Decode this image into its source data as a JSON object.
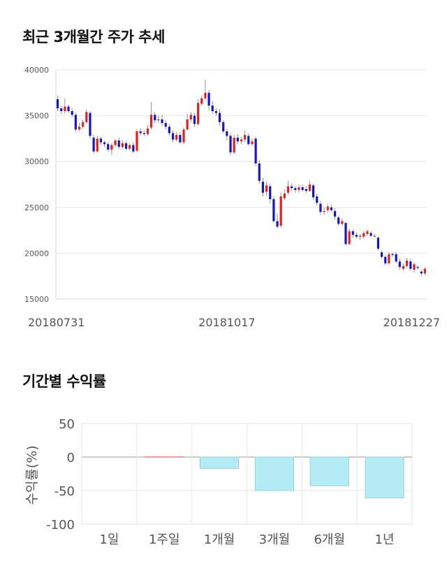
{
  "sections": {
    "price_title": "최근 3개월간 주가 추세",
    "return_title": "기간별 수익률"
  },
  "colors": {
    "up": "#e22020",
    "down": "#1515c8",
    "bar_fill": "#b3ecf5",
    "bar_stroke": "#9dcfd8",
    "grid": "#e6e6e6"
  },
  "chart_data": [
    {
      "type": "candlestick",
      "title": "최근 3개월간 주가 추세",
      "ylim": [
        15000,
        40000
      ],
      "yticks": [
        "40000",
        "35000",
        "30000",
        "25000",
        "20000",
        "15000"
      ],
      "ytick_values": [
        40000,
        35000,
        30000,
        25000,
        20000,
        15000
      ],
      "xtick_labels": [
        "20180731",
        "20181017",
        "20181227"
      ],
      "xtick_positions": [
        0,
        47,
        98
      ],
      "candles": [
        [
          36800,
          35800,
          37200,
          35500
        ],
        [
          35800,
          35500,
          36100,
          35200
        ],
        [
          35500,
          36000,
          36900,
          35200
        ],
        [
          36000,
          35500,
          36200,
          35300
        ],
        [
          35500,
          35100,
          35800,
          34800
        ],
        [
          35100,
          33500,
          35300,
          33200
        ],
        [
          33500,
          33800,
          34200,
          33300
        ],
        [
          33800,
          34300,
          34600,
          33600
        ],
        [
          34300,
          35400,
          35700,
          34100
        ],
        [
          35300,
          32800,
          35500,
          32500
        ],
        [
          32600,
          31100,
          32900,
          30900
        ],
        [
          31100,
          32500,
          32800,
          31000
        ],
        [
          32500,
          32100,
          32700,
          31800
        ],
        [
          32100,
          31900,
          32300,
          31600
        ],
        [
          31900,
          31300,
          32100,
          31100
        ],
        [
          31300,
          31800,
          32000,
          30700
        ],
        [
          31800,
          32300,
          32500,
          31600
        ],
        [
          32300,
          31600,
          32600,
          31400
        ],
        [
          31600,
          32000,
          32300,
          31400
        ],
        [
          32000,
          31400,
          32200,
          31200
        ],
        [
          31400,
          31800,
          32000,
          31200
        ],
        [
          31800,
          31100,
          32100,
          30900
        ],
        [
          31200,
          33300,
          33500,
          31000
        ],
        [
          33300,
          33100,
          33600,
          32800
        ],
        [
          33100,
          33000,
          33400,
          32800
        ],
        [
          33000,
          33600,
          34000,
          32800
        ],
        [
          33700,
          35100,
          36500,
          33500
        ],
        [
          35100,
          34500,
          35400,
          34200
        ],
        [
          34500,
          34600,
          35000,
          34200
        ],
        [
          34600,
          34200,
          35100,
          33900
        ],
        [
          34200,
          33800,
          34500,
          33500
        ],
        [
          33800,
          33100,
          34100,
          32800
        ],
        [
          33100,
          32400,
          33400,
          32100
        ],
        [
          32400,
          32900,
          33200,
          32200
        ],
        [
          32900,
          32100,
          33200,
          31900
        ],
        [
          32100,
          33500,
          33700,
          31900
        ],
        [
          33500,
          34600,
          35200,
          33400
        ],
        [
          34600,
          35100,
          35400,
          34300
        ],
        [
          35000,
          34100,
          35300,
          33800
        ],
        [
          34100,
          36400,
          36800,
          33900
        ],
        [
          36300,
          36900,
          37200,
          36100
        ],
        [
          36900,
          37500,
          38900,
          36700
        ],
        [
          37500,
          36100,
          37800,
          35600
        ],
        [
          36100,
          35500,
          36600,
          35200
        ],
        [
          35500,
          35300,
          35800,
          35000
        ],
        [
          35300,
          34300,
          35700,
          33900
        ],
        [
          34300,
          33300,
          34500,
          33100
        ],
        [
          33300,
          32800,
          33600,
          32300
        ],
        [
          32800,
          31000,
          33100,
          30700
        ],
        [
          31000,
          32600,
          32900,
          30800
        ],
        [
          32600,
          32200,
          33000,
          31900
        ],
        [
          32200,
          32400,
          32700,
          31900
        ],
        [
          32400,
          32900,
          33400,
          32100
        ],
        [
          32800,
          31900,
          33100,
          31700
        ],
        [
          31900,
          32200,
          32500,
          31700
        ],
        [
          32500,
          29800,
          32700,
          29500
        ],
        [
          29800,
          27900,
          30200,
          27600
        ],
        [
          27800,
          26600,
          28200,
          26200
        ],
        [
          26700,
          27400,
          27800,
          26300
        ],
        [
          27300,
          25900,
          27600,
          25400
        ],
        [
          25900,
          23500,
          26200,
          23300
        ],
        [
          23500,
          22900,
          24300,
          22700
        ],
        [
          23000,
          26200,
          26600,
          22800
        ],
        [
          26000,
          26500,
          27000,
          25800
        ],
        [
          26600,
          27300,
          27900,
          26400
        ],
        [
          27300,
          27100,
          27600,
          26800
        ],
        [
          27100,
          26900,
          27300,
          26600
        ],
        [
          26900,
          27200,
          27500,
          26600
        ],
        [
          27200,
          26900,
          27500,
          26700
        ],
        [
          27000,
          26800,
          27300,
          26600
        ],
        [
          26800,
          27500,
          27900,
          26700
        ],
        [
          27400,
          26100,
          27600,
          25800
        ],
        [
          26200,
          25500,
          26500,
          25200
        ],
        [
          25400,
          24500,
          25700,
          24200
        ],
        [
          24500,
          24600,
          25000,
          24200
        ],
        [
          24700,
          25100,
          25400,
          24400
        ],
        [
          25000,
          24700,
          25300,
          24500
        ],
        [
          24600,
          24000,
          24900,
          23700
        ],
        [
          23900,
          23200,
          24100,
          23000
        ],
        [
          23200,
          23500,
          23800,
          23000
        ],
        [
          23300,
          21000,
          23500,
          20800
        ],
        [
          21000,
          22400,
          22700,
          20900
        ],
        [
          22400,
          22000,
          22600,
          21700
        ],
        [
          22000,
          21800,
          22300,
          21600
        ],
        [
          21800,
          21900,
          22100,
          21500
        ],
        [
          21800,
          22200,
          22400,
          21600
        ],
        [
          22100,
          22400,
          22600,
          21900
        ],
        [
          22200,
          21900,
          22400,
          21700
        ],
        [
          21900,
          21900,
          22100,
          21700
        ],
        [
          21700,
          20500,
          21800,
          20300
        ],
        [
          20100,
          19600,
          20300,
          19400
        ],
        [
          19600,
          18900,
          19800,
          18700
        ],
        [
          18900,
          19900,
          20100,
          18700
        ],
        [
          19900,
          19800,
          20100,
          19600
        ],
        [
          19900,
          19100,
          20100,
          18900
        ],
        [
          19100,
          18500,
          19400,
          18200
        ],
        [
          18300,
          18600,
          18900,
          18100
        ],
        [
          18600,
          19200,
          19500,
          18400
        ],
        [
          19100,
          18300,
          19400,
          18100
        ],
        [
          18200,
          18800,
          19000,
          17900
        ],
        [
          18500,
          18400,
          18700,
          18200
        ],
        [
          18000,
          17800,
          18200,
          17500
        ],
        [
          17800,
          18300,
          18500,
          17600
        ]
      ]
    },
    {
      "type": "bar",
      "title": "기간별 수익률",
      "ylabel": "수익률(%)",
      "ylim": [
        -100,
        50
      ],
      "yticks": [
        "50",
        "0",
        "-50",
        "-100"
      ],
      "ytick_values": [
        50,
        0,
        -50,
        -100
      ],
      "categories": [
        "1일",
        "1주일",
        "1개월",
        "3개월",
        "6개월",
        "1년"
      ],
      "values": [
        0,
        0.6,
        -17,
        -50,
        -43,
        -61
      ]
    }
  ]
}
